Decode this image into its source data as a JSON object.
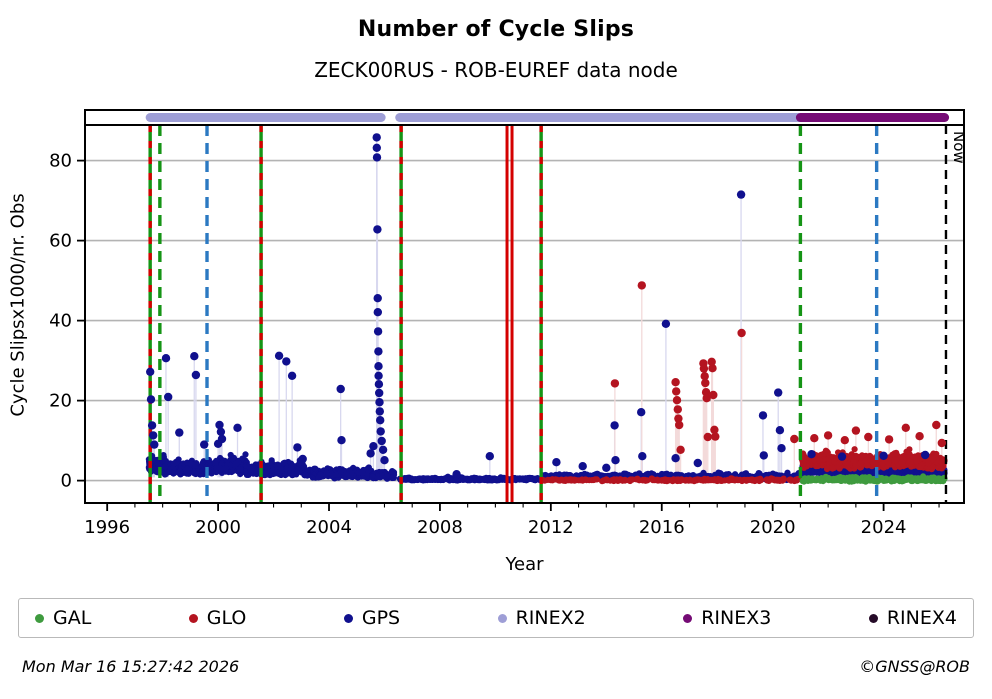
{
  "footer": {
    "left": "Mon Mar 16 15:27:42 2026",
    "right": "©GNSS@ROB"
  },
  "chart_data": {
    "type": "scatter",
    "title": "Number of Cycle Slips",
    "subtitle": "ZECK00RUS - ROB-EUREF data node",
    "xlabel": "Year",
    "ylabel": "Cycle Slipsx1000/nr. Obs",
    "xlim": [
      1995.2,
      2026.9
    ],
    "ylim": [
      -5.6,
      88.9
    ],
    "xticks_major": [
      1996,
      2000,
      2004,
      2008,
      2012,
      2016,
      2020,
      2024
    ],
    "xtick_minor_step": 1,
    "yticks": [
      0,
      20,
      40,
      60,
      80
    ],
    "grid": true,
    "now_label": "Now",
    "now_year": 2026.25,
    "legend": {
      "items": [
        {
          "key": "GAL",
          "label": "GAL"
        },
        {
          "key": "GLO",
          "label": "GLO"
        },
        {
          "key": "GPS",
          "label": "GPS"
        },
        {
          "key": "RINEX2",
          "label": "RINEX2"
        },
        {
          "key": "RINEX3",
          "label": "RINEX3"
        },
        {
          "key": "RINEX4",
          "label": "RINEX4"
        }
      ]
    },
    "colors": {
      "GAL": "#3f9b3f",
      "GLO": "#b41420",
      "GPS": "#10108e",
      "RINEX2": "#9e9ed6",
      "RINEX3": "#750b75",
      "RINEX4": "#260b28",
      "grid": "#b3b3b3",
      "frame": "#000000",
      "green_line": "#159415",
      "red_line": "#d40000",
      "blue_line": "#2b79c2",
      "black_line": "#000000",
      "stem_GPS": "#d8d8ef",
      "stem_GLO": "#f3dada",
      "stem_GAL": "#d9ecd9"
    },
    "rinex_bars": [
      {
        "name": "RINEX2",
        "segments": [
          [
            1997.55,
            2005.88
          ],
          [
            2006.55,
            2021.0
          ]
        ]
      },
      {
        "name": "RINEX3",
        "segments": [
          [
            2021.0,
            2026.2
          ]
        ]
      }
    ],
    "event_lines": [
      {
        "year": 1997.55,
        "style": "green_red"
      },
      {
        "year": 1997.9,
        "style": "green_dashed"
      },
      {
        "year": 1999.6,
        "style": "blue_dashed"
      },
      {
        "year": 2001.55,
        "style": "green_red"
      },
      {
        "year": 2006.6,
        "style": "green_red"
      },
      {
        "year": 2010.42,
        "style": "red_solid"
      },
      {
        "year": 2010.6,
        "style": "red_solid"
      },
      {
        "year": 2011.65,
        "style": "green_red"
      },
      {
        "year": 2021.0,
        "style": "green_dashed"
      },
      {
        "year": 2023.75,
        "style": "blue_dashed"
      },
      {
        "year": 2026.25,
        "style": "black_dashed",
        "label": "Now"
      }
    ],
    "bands": [
      {
        "series": "GPS",
        "x0": 1997.5,
        "x1": 1998.05,
        "ymin": 1.8,
        "ymax": 7.5,
        "n": 150
      },
      {
        "series": "GPS",
        "x0": 1998.05,
        "x1": 1999.6,
        "ymin": 1.3,
        "ymax": 6.0,
        "n": 220
      },
      {
        "series": "GPS",
        "x0": 1999.6,
        "x1": 2001.0,
        "ymin": 1.5,
        "ymax": 7.5,
        "n": 220
      },
      {
        "series": "GPS",
        "x0": 2001.0,
        "x1": 2001.5,
        "ymin": 1.2,
        "ymax": 5.5,
        "n": 80
      },
      {
        "series": "GPS",
        "x0": 2001.55,
        "x1": 2003.1,
        "ymin": 1.0,
        "ymax": 6.0,
        "n": 230
      },
      {
        "series": "GPS",
        "x0": 2003.1,
        "x1": 2005.55,
        "ymin": 0.5,
        "ymax": 4.0,
        "n": 320
      },
      {
        "series": "GPS",
        "x0": 2005.55,
        "x1": 2006.35,
        "ymin": 0.4,
        "ymax": 3.0,
        "n": 110
      },
      {
        "series": "GPS",
        "x0": 2006.55,
        "x1": 2011.6,
        "ymin": 0.0,
        "ymax": 1.0,
        "n": 420
      },
      {
        "series": "GPS",
        "x0": 2011.7,
        "x1": 2021.0,
        "ymin": 0.1,
        "ymax": 2.3,
        "n": 780
      },
      {
        "series": "GPS",
        "x0": 2021.05,
        "x1": 2026.2,
        "ymin": 1.2,
        "ymax": 4.6,
        "n": 520
      },
      {
        "series": "GLO",
        "x0": 2011.7,
        "x1": 2021.0,
        "ymin": -0.2,
        "ymax": 0.7,
        "n": 260
      },
      {
        "series": "GLO",
        "x0": 2021.05,
        "x1": 2026.2,
        "ymin": 2.8,
        "ymax": 8.6,
        "n": 620
      },
      {
        "series": "GAL",
        "x0": 2021.05,
        "x1": 2026.2,
        "ymin": -0.3,
        "ymax": 1.4,
        "n": 340
      }
    ],
    "outliers": {
      "GPS": [
        [
          1997.55,
          27.2
        ],
        [
          1997.58,
          20.3
        ],
        [
          1997.62,
          13.8
        ],
        [
          1997.66,
          11.3
        ],
        [
          1997.7,
          9.0
        ],
        [
          1998.12,
          30.6
        ],
        [
          1998.2,
          20.9
        ],
        [
          1998.6,
          12.0
        ],
        [
          1999.14,
          31.1
        ],
        [
          1999.2,
          26.4
        ],
        [
          1999.5,
          9.0
        ],
        [
          2000.0,
          9.2
        ],
        [
          2000.05,
          13.9
        ],
        [
          2000.1,
          12.2
        ],
        [
          2000.14,
          10.4
        ],
        [
          2000.7,
          13.2
        ],
        [
          2002.2,
          31.2
        ],
        [
          2002.46,
          29.8
        ],
        [
          2002.67,
          26.2
        ],
        [
          2002.86,
          8.3
        ],
        [
          2003.05,
          5.4
        ],
        [
          2004.42,
          22.9
        ],
        [
          2004.45,
          10.1
        ],
        [
          2005.5,
          6.8
        ],
        [
          2005.6,
          8.6
        ],
        [
          2005.72,
          85.8
        ],
        [
          2005.725,
          83.2
        ],
        [
          2005.73,
          80.8
        ],
        [
          2005.745,
          62.8
        ],
        [
          2005.755,
          45.6
        ],
        [
          2005.76,
          42.1
        ],
        [
          2005.77,
          37.3
        ],
        [
          2005.78,
          32.3
        ],
        [
          2005.785,
          28.6
        ],
        [
          2005.79,
          26.2
        ],
        [
          2005.8,
          24.1
        ],
        [
          2005.81,
          21.9
        ],
        [
          2005.82,
          19.6
        ],
        [
          2005.83,
          17.3
        ],
        [
          2005.845,
          15.1
        ],
        [
          2005.865,
          12.3
        ],
        [
          2005.9,
          9.9
        ],
        [
          2005.95,
          7.7
        ],
        [
          2006.0,
          5.1
        ],
        [
          2008.6,
          1.6
        ],
        [
          2009.8,
          6.1
        ],
        [
          2012.2,
          4.6
        ],
        [
          2013.15,
          3.6
        ],
        [
          2014.0,
          3.2
        ],
        [
          2014.3,
          13.8
        ],
        [
          2014.33,
          5.1
        ],
        [
          2015.26,
          17.1
        ],
        [
          2015.3,
          6.1
        ],
        [
          2016.15,
          39.2
        ],
        [
          2016.5,
          5.6
        ],
        [
          2017.3,
          4.4
        ],
        [
          2018.86,
          71.5
        ],
        [
          2019.65,
          16.3
        ],
        [
          2019.68,
          6.3
        ],
        [
          2020.2,
          22.0
        ],
        [
          2020.26,
          12.6
        ],
        [
          2020.32,
          8.1
        ],
        [
          2021.4,
          6.6
        ],
        [
          2022.5,
          6.0
        ],
        [
          2024.0,
          6.2
        ],
        [
          2025.5,
          6.4
        ]
      ],
      "GLO": [
        [
          2014.31,
          24.3
        ],
        [
          2015.28,
          48.8
        ],
        [
          2016.5,
          24.6
        ],
        [
          2016.52,
          22.3
        ],
        [
          2016.55,
          20.1
        ],
        [
          2016.58,
          17.8
        ],
        [
          2016.6,
          15.5
        ],
        [
          2016.63,
          13.9
        ],
        [
          2016.68,
          7.7
        ],
        [
          2017.5,
          29.3
        ],
        [
          2017.52,
          28.0
        ],
        [
          2017.55,
          26.1
        ],
        [
          2017.57,
          24.4
        ],
        [
          2017.6,
          22.1
        ],
        [
          2017.62,
          20.6
        ],
        [
          2017.66,
          10.9
        ],
        [
          2017.8,
          29.7
        ],
        [
          2017.83,
          28.1
        ],
        [
          2017.86,
          21.4
        ],
        [
          2017.9,
          12.7
        ],
        [
          2017.93,
          11.0
        ],
        [
          2018.88,
          36.9
        ],
        [
          2020.78,
          10.4
        ],
        [
          2021.5,
          10.6
        ],
        [
          2022.0,
          11.3
        ],
        [
          2022.6,
          10.1
        ],
        [
          2023.0,
          12.5
        ],
        [
          2023.45,
          10.9
        ],
        [
          2024.2,
          10.3
        ],
        [
          2024.8,
          13.2
        ],
        [
          2025.3,
          11.1
        ],
        [
          2025.9,
          13.9
        ],
        [
          2026.1,
          9.4
        ]
      ],
      "GAL": []
    }
  }
}
